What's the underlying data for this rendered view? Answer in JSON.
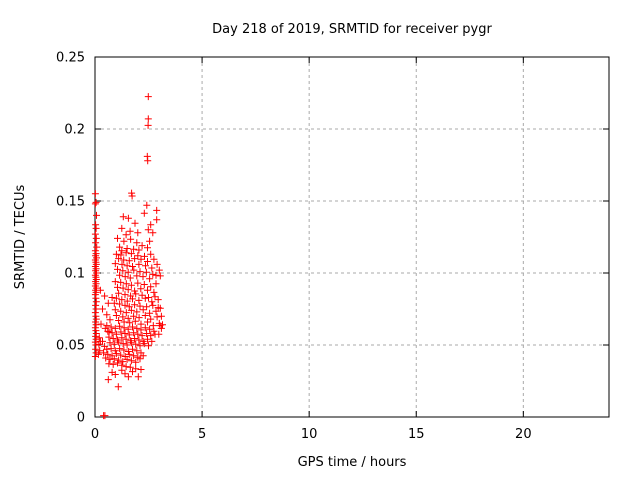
{
  "chart_data": {
    "type": "scatter",
    "title": "Day 218 of 2019, SRMTID for receiver pygr",
    "xlabel": "GPS time / hours",
    "ylabel": "SRMTID / TECUs",
    "xlim": [
      0,
      24
    ],
    "ylim": [
      0,
      0.25
    ],
    "xticks": [
      0,
      5,
      10,
      15,
      20
    ],
    "xtick_labels": [
      "0",
      "5",
      "10",
      "15",
      "20"
    ],
    "yticks": [
      0,
      0.05,
      0.1,
      0.15,
      0.2,
      0.25
    ],
    "ytick_labels": [
      "0",
      "0.05",
      "0.1",
      "0.15",
      "0.2",
      "0.25"
    ],
    "grid": true,
    "legend_position": "none",
    "grid_color": "#aaaaaa",
    "axis_color": "#000000",
    "background_color": "#ffffff",
    "marker": {
      "shape": "plus",
      "color": "#ff0000",
      "size": 7
    },
    "series": [
      {
        "name": "SRMTID",
        "points": [
          [
            0.02,
            0.155
          ],
          [
            0.05,
            0.149
          ],
          [
            0.02,
            0.148
          ],
          [
            0.07,
            0.14
          ],
          [
            0.03,
            0.1335
          ],
          [
            0.05,
            0.131
          ],
          [
            0.02,
            0.127
          ],
          [
            0.06,
            0.124
          ],
          [
            0.03,
            0.121
          ],
          [
            0.08,
            0.118
          ],
          [
            0.02,
            0.1155
          ],
          [
            0.05,
            0.1135
          ],
          [
            0.03,
            0.112
          ],
          [
            0.07,
            0.1105
          ],
          [
            0.02,
            0.109
          ],
          [
            0.04,
            0.1075
          ],
          [
            0.06,
            0.106
          ],
          [
            0.02,
            0.1045
          ],
          [
            0.05,
            0.103
          ],
          [
            0.03,
            0.1015
          ],
          [
            0.07,
            0.1
          ],
          [
            0.02,
            0.0985
          ],
          [
            0.04,
            0.097
          ],
          [
            0.06,
            0.0955
          ],
          [
            0.03,
            0.094
          ],
          [
            0.05,
            0.0925
          ],
          [
            0.02,
            0.091
          ],
          [
            0.07,
            0.0895
          ],
          [
            0.03,
            0.088
          ],
          [
            0.05,
            0.0865
          ],
          [
            0.02,
            0.085
          ],
          [
            0.04,
            0.0825
          ],
          [
            0.06,
            0.08
          ],
          [
            0.03,
            0.0775
          ],
          [
            0.05,
            0.075
          ],
          [
            0.02,
            0.0725
          ],
          [
            0.04,
            0.07
          ],
          [
            0.06,
            0.068
          ],
          [
            0.03,
            0.066
          ],
          [
            0.05,
            0.064
          ],
          [
            0.02,
            0.062
          ],
          [
            0.04,
            0.06
          ],
          [
            0.06,
            0.058
          ],
          [
            0.03,
            0.056
          ],
          [
            0.05,
            0.054
          ],
          [
            0.02,
            0.052
          ],
          [
            0.04,
            0.05
          ],
          [
            0.03,
            0.047
          ],
          [
            0.05,
            0.0445
          ],
          [
            0.02,
            0.042
          ],
          [
            0.4,
            0.001
          ],
          [
            0.46,
            0.001
          ],
          [
            0.25,
            0.088
          ],
          [
            0.45,
            0.084
          ],
          [
            0.62,
            0.079
          ],
          [
            0.35,
            0.075
          ],
          [
            0.55,
            0.071
          ],
          [
            0.7,
            0.0675
          ],
          [
            0.28,
            0.0645
          ],
          [
            0.48,
            0.0615
          ],
          [
            0.66,
            0.059
          ],
          [
            0.8,
            0.083
          ],
          [
            0.18,
            0.0505
          ],
          [
            0.22,
            0.046
          ],
          [
            0.16,
            0.0435
          ],
          [
            0.2,
            0.055
          ],
          [
            0.25,
            0.0525
          ],
          [
            1.71,
            0.1555
          ],
          [
            1.73,
            0.1535
          ],
          [
            2.42,
            0.147
          ],
          [
            2.88,
            0.1435
          ],
          [
            1.32,
            0.139
          ],
          [
            1.56,
            0.138
          ],
          [
            2.88,
            0.137
          ],
          [
            1.87,
            0.1345
          ],
          [
            1.25,
            0.131
          ],
          [
            2.49,
            0.13
          ],
          [
            1.64,
            0.129
          ],
          [
            2.0,
            0.128
          ],
          [
            2.6,
            0.1335
          ],
          [
            2.7,
            0.128
          ],
          [
            1.45,
            0.1265
          ],
          [
            2.3,
            0.1415
          ],
          [
            2.49,
            0.2225
          ],
          [
            2.49,
            0.207
          ],
          [
            2.48,
            0.2025
          ],
          [
            2.44,
            0.181
          ],
          [
            2.46,
            0.178
          ],
          [
            1.05,
            0.124
          ],
          [
            1.35,
            0.122
          ],
          [
            1.66,
            0.1235
          ],
          [
            1.95,
            0.121
          ],
          [
            2.2,
            0.119
          ],
          [
            1.15,
            0.118
          ],
          [
            1.5,
            0.117
          ],
          [
            1.8,
            0.1165
          ],
          [
            2.45,
            0.1175
          ],
          [
            1.25,
            0.1155
          ],
          [
            2.05,
            0.116
          ],
          [
            2.55,
            0.122
          ],
          [
            1.0,
            0.113
          ],
          [
            1.21,
            0.1125
          ],
          [
            1.45,
            0.114
          ],
          [
            1.7,
            0.1135
          ],
          [
            2.0,
            0.112
          ],
          [
            2.31,
            0.1115
          ],
          [
            2.6,
            0.113
          ],
          [
            1.1,
            0.11
          ],
          [
            1.34,
            0.109
          ],
          [
            1.6,
            0.1085
          ],
          [
            1.85,
            0.11
          ],
          [
            2.15,
            0.1095
          ],
          [
            2.45,
            0.108
          ],
          [
            2.75,
            0.1095
          ],
          [
            0.95,
            0.1065
          ],
          [
            1.26,
            0.106
          ],
          [
            1.5,
            0.105
          ],
          [
            1.75,
            0.1045
          ],
          [
            2.05,
            0.106
          ],
          [
            2.36,
            0.105
          ],
          [
            2.65,
            0.1035
          ],
          [
            2.9,
            0.106
          ],
          [
            1.05,
            0.1025
          ],
          [
            1.3,
            0.1015
          ],
          [
            1.55,
            0.1005
          ],
          [
            1.81,
            0.102
          ],
          [
            2.1,
            0.101
          ],
          [
            2.4,
            0.1005
          ],
          [
            2.7,
            0.099
          ],
          [
            1.15,
            0.0985
          ],
          [
            1.41,
            0.0975
          ],
          [
            1.65,
            0.0965
          ],
          [
            1.95,
            0.098
          ],
          [
            2.24,
            0.0975
          ],
          [
            2.55,
            0.096
          ],
          [
            2.85,
            0.0985
          ],
          [
            0.95,
            0.094
          ],
          [
            1.2,
            0.0935
          ],
          [
            1.46,
            0.0925
          ],
          [
            1.7,
            0.0915
          ],
          [
            2.0,
            0.093
          ],
          [
            2.3,
            0.092
          ],
          [
            2.6,
            0.0905
          ],
          [
            2.85,
            0.0925
          ],
          [
            1.05,
            0.09
          ],
          [
            1.31,
            0.0895
          ],
          [
            1.55,
            0.0885
          ],
          [
            1.85,
            0.0875
          ],
          [
            2.14,
            0.089
          ],
          [
            2.45,
            0.088
          ],
          [
            2.75,
            0.0865
          ],
          [
            1.1,
            0.086
          ],
          [
            1.4,
            0.085
          ],
          [
            1.66,
            0.084
          ],
          [
            1.9,
            0.0855
          ],
          [
            2.2,
            0.0845
          ],
          [
            2.5,
            0.083
          ],
          [
            2.8,
            0.0835
          ],
          [
            1.0,
            0.0825
          ],
          [
            1.25,
            0.0815
          ],
          [
            1.51,
            0.0805
          ],
          [
            1.75,
            0.082
          ],
          [
            2.05,
            0.081
          ],
          [
            2.35,
            0.0825
          ],
          [
            2.65,
            0.08
          ],
          [
            2.95,
            0.0815
          ],
          [
            0.9,
            0.079
          ],
          [
            1.15,
            0.0785
          ],
          [
            1.4,
            0.0775
          ],
          [
            1.6,
            0.0765
          ],
          [
            1.85,
            0.078
          ],
          [
            2.1,
            0.077
          ],
          [
            2.41,
            0.0765
          ],
          [
            2.7,
            0.0775
          ],
          [
            2.95,
            0.076
          ],
          [
            0.95,
            0.0745
          ],
          [
            1.2,
            0.0735
          ],
          [
            1.46,
            0.0725
          ],
          [
            1.7,
            0.074
          ],
          [
            1.95,
            0.073
          ],
          [
            2.25,
            0.0745
          ],
          [
            2.55,
            0.072
          ],
          [
            2.85,
            0.0735
          ],
          [
            1.0,
            0.0705
          ],
          [
            1.3,
            0.0695
          ],
          [
            1.55,
            0.0685
          ],
          [
            1.8,
            0.07
          ],
          [
            2.06,
            0.069
          ],
          [
            2.35,
            0.0705
          ],
          [
            2.6,
            0.068
          ],
          [
            2.9,
            0.0695
          ],
          [
            1.1,
            0.067
          ],
          [
            1.36,
            0.066
          ],
          [
            1.62,
            0.0655
          ],
          [
            1.88,
            0.0665
          ],
          [
            2.15,
            0.0645
          ],
          [
            2.45,
            0.066
          ],
          [
            2.72,
            0.0635
          ],
          [
            3.0,
            0.065
          ],
          [
            3.1,
            0.07
          ],
          [
            3.05,
            0.0755
          ],
          [
            0.55,
            0.0635
          ],
          [
            0.75,
            0.0625
          ],
          [
            0.95,
            0.0615
          ],
          [
            1.15,
            0.063
          ],
          [
            1.36,
            0.062
          ],
          [
            1.55,
            0.061
          ],
          [
            1.75,
            0.0625
          ],
          [
            1.95,
            0.0615
          ],
          [
            2.15,
            0.0605
          ],
          [
            2.35,
            0.062
          ],
          [
            2.55,
            0.061
          ],
          [
            2.75,
            0.0595
          ],
          [
            0.6,
            0.0595
          ],
          [
            0.8,
            0.0585
          ],
          [
            1.0,
            0.0575
          ],
          [
            1.21,
            0.059
          ],
          [
            1.4,
            0.058
          ],
          [
            1.6,
            0.057
          ],
          [
            1.8,
            0.0585
          ],
          [
            2.0,
            0.0575
          ],
          [
            2.2,
            0.0565
          ],
          [
            2.41,
            0.058
          ],
          [
            2.6,
            0.0565
          ],
          [
            2.8,
            0.0575
          ],
          [
            0.65,
            0.0555
          ],
          [
            0.85,
            0.0545
          ],
          [
            1.05,
            0.0535
          ],
          [
            1.25,
            0.055
          ],
          [
            1.45,
            0.054
          ],
          [
            1.66,
            0.053
          ],
          [
            1.85,
            0.0545
          ],
          [
            2.05,
            0.0535
          ],
          [
            2.25,
            0.0525
          ],
          [
            2.45,
            0.054
          ],
          [
            2.65,
            0.0525
          ],
          [
            0.7,
            0.0515
          ],
          [
            0.9,
            0.0505
          ],
          [
            1.1,
            0.052
          ],
          [
            1.31,
            0.051
          ],
          [
            1.5,
            0.05
          ],
          [
            1.7,
            0.0515
          ],
          [
            1.9,
            0.0505
          ],
          [
            2.1,
            0.0495
          ],
          [
            2.3,
            0.051
          ],
          [
            2.5,
            0.0495
          ],
          [
            0.35,
            0.0525
          ],
          [
            0.45,
            0.049
          ],
          [
            0.55,
            0.047
          ],
          [
            0.75,
            0.0475
          ],
          [
            0.95,
            0.046
          ],
          [
            1.15,
            0.0475
          ],
          [
            1.35,
            0.0465
          ],
          [
            1.56,
            0.0455
          ],
          [
            1.75,
            0.047
          ],
          [
            1.95,
            0.046
          ],
          [
            2.15,
            0.0445
          ],
          [
            0.4,
            0.0445
          ],
          [
            0.6,
            0.0435
          ],
          [
            0.8,
            0.0425
          ],
          [
            1.0,
            0.044
          ],
          [
            1.2,
            0.043
          ],
          [
            1.41,
            0.042
          ],
          [
            1.6,
            0.0435
          ],
          [
            1.8,
            0.0425
          ],
          [
            2.0,
            0.0415
          ],
          [
            0.5,
            0.041
          ],
          [
            0.7,
            0.04
          ],
          [
            0.9,
            0.0405
          ],
          [
            1.1,
            0.0395
          ],
          [
            1.3,
            0.0385
          ],
          [
            1.5,
            0.04
          ],
          [
            1.7,
            0.039
          ],
          [
            1.9,
            0.038
          ],
          [
            0.65,
            0.037
          ],
          [
            0.85,
            0.0365
          ],
          [
            1.05,
            0.0375
          ],
          [
            1.25,
            0.036
          ],
          [
            1.45,
            0.035
          ],
          [
            2.1,
            0.0405
          ],
          [
            2.25,
            0.0425
          ],
          [
            0.62,
            0.026
          ],
          [
            0.8,
            0.031
          ],
          [
            0.95,
            0.0295
          ],
          [
            1.09,
            0.021
          ],
          [
            1.25,
            0.0325
          ],
          [
            1.56,
            0.028
          ],
          [
            1.75,
            0.0315
          ],
          [
            2.02,
            0.028
          ],
          [
            1.4,
            0.03
          ],
          [
            1.9,
            0.0335
          ],
          [
            2.15,
            0.033
          ],
          [
            1.65,
            0.0345
          ],
          [
            3.0,
            0.102
          ],
          [
            3.05,
            0.098
          ],
          [
            3.1,
            0.0615
          ],
          [
            3.15,
            0.064
          ],
          [
            2.98,
            0.0575
          ],
          [
            3.03,
            0.0635
          ]
        ]
      }
    ]
  }
}
